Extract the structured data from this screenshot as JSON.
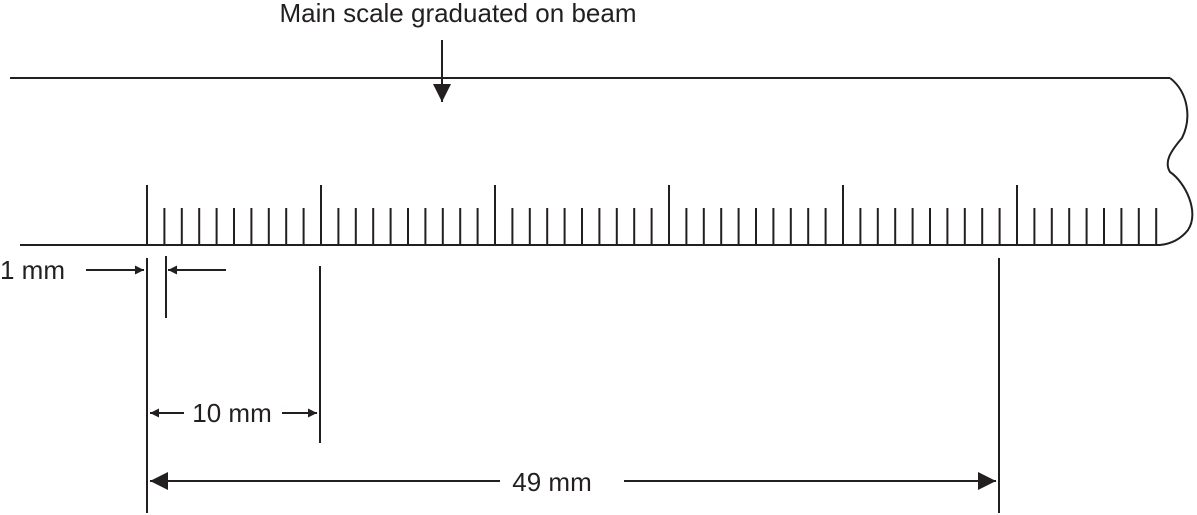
{
  "diagram": {
    "title": "Main scale graduated on beam",
    "label_1mm": "1 mm",
    "label_10mm": "10 mm",
    "label_49mm": "49 mm",
    "scale": {
      "divisions_mm": 58,
      "major_every_mm": 10
    },
    "colors": {
      "line": "#231f20",
      "background": "#ffffff"
    }
  }
}
